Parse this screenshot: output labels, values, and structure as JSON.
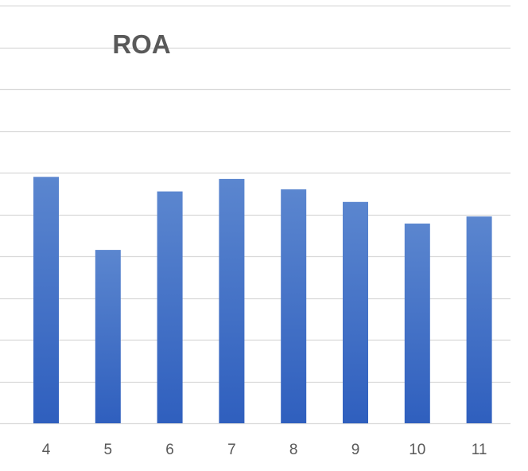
{
  "chart_data": {
    "type": "bar",
    "title": "ROA",
    "xlabel": "",
    "ylabel": "",
    "categories": [
      "4",
      "5",
      "6",
      "7",
      "8",
      "9",
      "10",
      "11"
    ],
    "values": [
      5.9,
      4.15,
      5.55,
      5.85,
      5.6,
      5.3,
      4.78,
      4.95
    ],
    "ylim": [
      0,
      10
    ],
    "gridlines": [
      0,
      1,
      2,
      3,
      4,
      5,
      6,
      7,
      8,
      9,
      10
    ],
    "grid": true,
    "legend": "none",
    "bar_color_top": "#5b86cf",
    "bar_color_bottom": "#2f5fbe"
  }
}
